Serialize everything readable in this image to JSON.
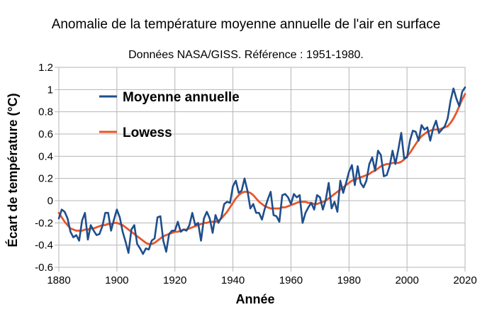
{
  "chart_data": {
    "type": "line",
    "title": "Anomalie de la température moyenne annuelle de l'air en surface",
    "subtitle": "Données NASA/GISS. Référence : 1951-1980.",
    "xlabel": "Année",
    "ylabel": "Écart de température (°C)",
    "xlim": [
      1880,
      2020
    ],
    "ylim": [
      -0.6,
      1.2
    ],
    "xticks": [
      "1880",
      "1900",
      "1920",
      "1940",
      "1960",
      "1980",
      "2000",
      "2020"
    ],
    "yticks": [
      "-0.6",
      "-0.4",
      "-0.2",
      "0",
      "0.2",
      "0.4",
      "0.6",
      "0.8",
      "1",
      "1.2"
    ],
    "grid": true,
    "legend_position": "top-left",
    "x": [
      1880,
      1881,
      1882,
      1883,
      1884,
      1885,
      1886,
      1887,
      1888,
      1889,
      1890,
      1891,
      1892,
      1893,
      1894,
      1895,
      1896,
      1897,
      1898,
      1899,
      1900,
      1901,
      1902,
      1903,
      1904,
      1905,
      1906,
      1907,
      1908,
      1909,
      1910,
      1911,
      1912,
      1913,
      1914,
      1915,
      1916,
      1917,
      1918,
      1919,
      1920,
      1921,
      1922,
      1923,
      1924,
      1925,
      1926,
      1927,
      1928,
      1929,
      1930,
      1931,
      1932,
      1933,
      1934,
      1935,
      1936,
      1937,
      1938,
      1939,
      1940,
      1941,
      1942,
      1943,
      1944,
      1945,
      1946,
      1947,
      1948,
      1949,
      1950,
      1951,
      1952,
      1953,
      1954,
      1955,
      1956,
      1957,
      1958,
      1959,
      1960,
      1961,
      1962,
      1963,
      1964,
      1965,
      1966,
      1967,
      1968,
      1969,
      1970,
      1971,
      1972,
      1973,
      1974,
      1975,
      1976,
      1977,
      1978,
      1979,
      1980,
      1981,
      1982,
      1983,
      1984,
      1985,
      1986,
      1987,
      1988,
      1989,
      1990,
      1991,
      1992,
      1993,
      1994,
      1995,
      1996,
      1997,
      1998,
      1999,
      2000,
      2001,
      2002,
      2003,
      2004,
      2005,
      2006,
      2007,
      2008,
      2009,
      2010,
      2011,
      2012,
      2013,
      2014,
      2015,
      2016,
      2017,
      2018,
      2019,
      2020
    ],
    "series": [
      {
        "name": "Moyenne annuelle",
        "color": "#1f4e8c",
        "values": [
          -0.16,
          -0.08,
          -0.1,
          -0.16,
          -0.28,
          -0.33,
          -0.31,
          -0.36,
          -0.18,
          -0.11,
          -0.35,
          -0.22,
          -0.27,
          -0.31,
          -0.3,
          -0.23,
          -0.11,
          -0.11,
          -0.27,
          -0.17,
          -0.08,
          -0.15,
          -0.28,
          -0.37,
          -0.47,
          -0.26,
          -0.22,
          -0.39,
          -0.43,
          -0.48,
          -0.43,
          -0.44,
          -0.36,
          -0.34,
          -0.15,
          -0.14,
          -0.36,
          -0.46,
          -0.3,
          -0.27,
          -0.27,
          -0.19,
          -0.28,
          -0.26,
          -0.27,
          -0.22,
          -0.11,
          -0.22,
          -0.2,
          -0.36,
          -0.16,
          -0.1,
          -0.16,
          -0.29,
          -0.13,
          -0.2,
          -0.15,
          -0.03,
          -0.01,
          -0.02,
          0.13,
          0.18,
          0.07,
          0.09,
          0.2,
          0.09,
          -0.07,
          -0.03,
          -0.11,
          -0.11,
          -0.17,
          -0.07,
          0.01,
          0.08,
          -0.13,
          -0.14,
          -0.19,
          0.05,
          0.06,
          0.03,
          -0.03,
          0.06,
          0.03,
          0.05,
          -0.2,
          -0.11,
          -0.06,
          -0.02,
          -0.08,
          0.05,
          0.03,
          -0.08,
          0.01,
          0.16,
          -0.07,
          -0.01,
          -0.1,
          0.18,
          0.07,
          0.16,
          0.26,
          0.32,
          0.14,
          0.31,
          0.16,
          0.12,
          0.18,
          0.33,
          0.39,
          0.27,
          0.45,
          0.41,
          0.22,
          0.23,
          0.31,
          0.45,
          0.33,
          0.46,
          0.61,
          0.38,
          0.39,
          0.54,
          0.63,
          0.62,
          0.54,
          0.68,
          0.64,
          0.66,
          0.54,
          0.65,
          0.72,
          0.61,
          0.64,
          0.67,
          0.74,
          0.9,
          1.01,
          0.92,
          0.85,
          0.98,
          1.02
        ]
      },
      {
        "name": "Lowess",
        "color": "#e8552a",
        "values": [
          -0.11,
          -0.15,
          -0.19,
          -0.22,
          -0.25,
          -0.26,
          -0.27,
          -0.27,
          -0.27,
          -0.26,
          -0.26,
          -0.25,
          -0.25,
          -0.24,
          -0.23,
          -0.22,
          -0.22,
          -0.21,
          -0.21,
          -0.2,
          -0.2,
          -0.21,
          -0.22,
          -0.24,
          -0.26,
          -0.28,
          -0.3,
          -0.32,
          -0.34,
          -0.36,
          -0.38,
          -0.39,
          -0.39,
          -0.38,
          -0.36,
          -0.34,
          -0.32,
          -0.31,
          -0.3,
          -0.29,
          -0.28,
          -0.28,
          -0.27,
          -0.26,
          -0.26,
          -0.25,
          -0.24,
          -0.23,
          -0.22,
          -0.21,
          -0.2,
          -0.2,
          -0.19,
          -0.19,
          -0.19,
          -0.18,
          -0.16,
          -0.13,
          -0.1,
          -0.06,
          -0.02,
          0.02,
          0.05,
          0.07,
          0.08,
          0.08,
          0.07,
          0.05,
          0.02,
          -0.01,
          -0.03,
          -0.05,
          -0.06,
          -0.07,
          -0.07,
          -0.07,
          -0.07,
          -0.06,
          -0.06,
          -0.05,
          -0.04,
          -0.03,
          -0.02,
          -0.01,
          -0.01,
          -0.01,
          -0.02,
          -0.02,
          -0.03,
          -0.03,
          -0.02,
          -0.01,
          0.0,
          0.02,
          0.04,
          0.06,
          0.08,
          0.1,
          0.12,
          0.14,
          0.16,
          0.18,
          0.19,
          0.2,
          0.21,
          0.22,
          0.23,
          0.24,
          0.26,
          0.27,
          0.29,
          0.31,
          0.32,
          0.33,
          0.33,
          0.34,
          0.34,
          0.34,
          0.35,
          0.37,
          0.4,
          0.43,
          0.47,
          0.51,
          0.55,
          0.58,
          0.6,
          0.62,
          0.63,
          0.64,
          0.64,
          0.64,
          0.65,
          0.66,
          0.67,
          0.7,
          0.74,
          0.79,
          0.85,
          0.91,
          0.96
        ]
      }
    ]
  }
}
